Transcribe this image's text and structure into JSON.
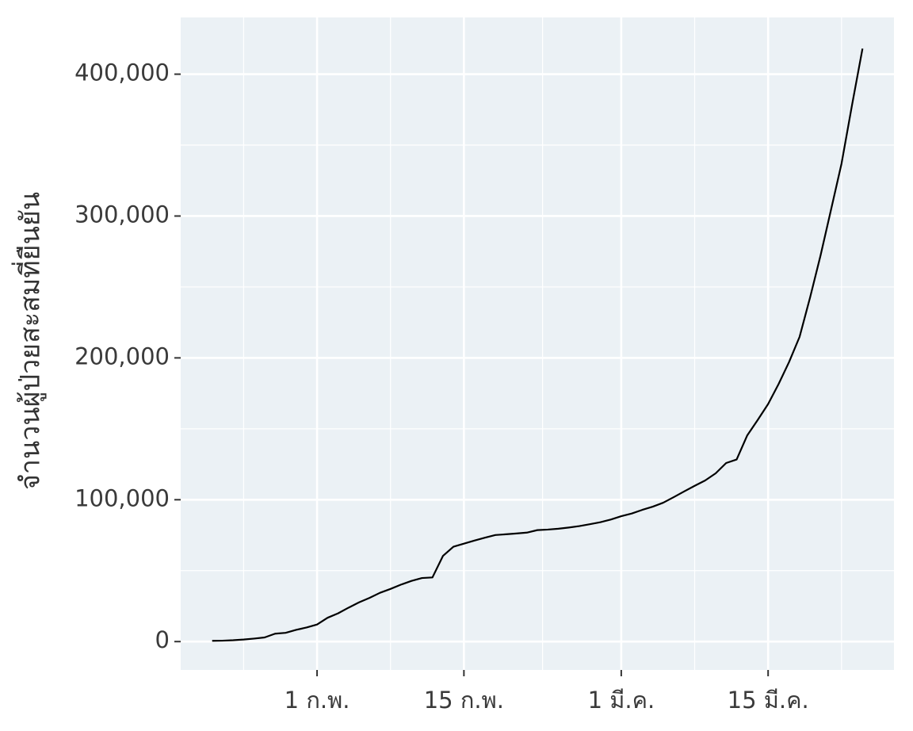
{
  "chart_data": {
    "type": "line",
    "y_label": "จำนวนผู้ป่วยสะสมที่ยืนยัน",
    "x": [
      "01-22",
      "01-23",
      "01-24",
      "01-25",
      "01-26",
      "01-27",
      "01-28",
      "01-29",
      "01-30",
      "01-31",
      "02-01",
      "02-02",
      "02-03",
      "02-04",
      "02-05",
      "02-06",
      "02-07",
      "02-08",
      "02-09",
      "02-10",
      "02-11",
      "02-12",
      "02-13",
      "02-14",
      "02-15",
      "02-16",
      "02-17",
      "02-18",
      "02-19",
      "02-20",
      "02-21",
      "02-22",
      "02-23",
      "02-24",
      "02-25",
      "02-26",
      "02-27",
      "02-28",
      "02-29",
      "03-01",
      "03-02",
      "03-03",
      "03-04",
      "03-05",
      "03-06",
      "03-07",
      "03-08",
      "03-09",
      "03-10",
      "03-11",
      "03-12",
      "03-13",
      "03-14",
      "03-15",
      "03-16",
      "03-17",
      "03-18",
      "03-19",
      "03-20",
      "03-21",
      "03-22",
      "03-23",
      "03-24"
    ],
    "values": [
      555,
      654,
      941,
      1434,
      2118,
      2927,
      5578,
      6166,
      8234,
      9927,
      12038,
      16787,
      19881,
      23892,
      27635,
      30794,
      34391,
      37120,
      40150,
      42762,
      44802,
      45221,
      60368,
      66885,
      69030,
      71224,
      73258,
      75136,
      75639,
      76197,
      76823,
      78579,
      78965,
      79568,
      80413,
      81395,
      82754,
      84120,
      86011,
      88369,
      90306,
      92840,
      95120,
      97886,
      101801,
      105847,
      109821,
      113590,
      118620,
      125875,
      128352,
      145205,
      156101,
      167454,
      181574,
      197102,
      214821,
      242570,
      272208,
      304507,
      336953,
      378231,
      418041
    ],
    "color": "#000000",
    "xlim": [
      "01-19",
      "03-27"
    ],
    "xticks": [
      {
        "value": "02-01",
        "label": "1 ก.พ."
      },
      {
        "value": "02-15",
        "label": "15 ก.พ."
      },
      {
        "value": "03-01",
        "label": "1 มี.ค."
      },
      {
        "value": "03-15",
        "label": "15 มี.ค."
      }
    ],
    "ylim": [
      -20000,
      440000
    ],
    "yticks": [
      0,
      {
        "value": 100000,
        "label": "100,000"
      },
      {
        "value": 200000,
        "label": "200,000"
      },
      {
        "value": 300000,
        "label": "300,000"
      },
      {
        "value": 400000,
        "label": "400,000"
      }
    ],
    "grid": true,
    "panel_color": "#ebf1f5"
  }
}
